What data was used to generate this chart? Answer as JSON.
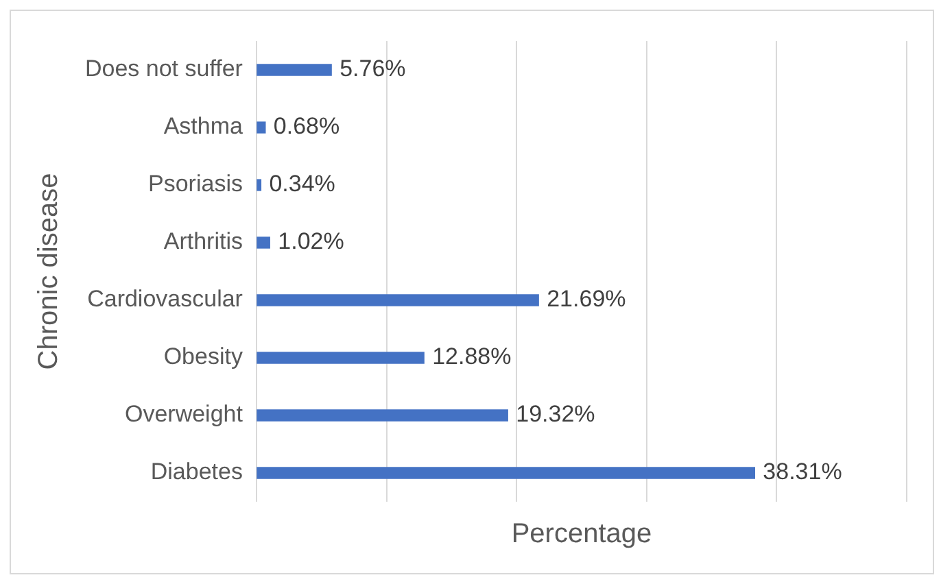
{
  "chart_data": {
    "type": "bar",
    "orientation": "horizontal",
    "xlabel": "Percentage",
    "ylabel": "Chronic disease",
    "categories": [
      "Does not suffer",
      "Asthma",
      "Psoriasis",
      "Arthritis",
      "Cardiovascular",
      "Obesity",
      "Overweight",
      "Diabetes"
    ],
    "values": [
      5.76,
      0.68,
      0.34,
      1.02,
      21.69,
      12.88,
      19.32,
      38.31
    ],
    "value_labels": [
      "5.76%",
      "0.68%",
      "0.34%",
      "1.02%",
      "21.69%",
      "12.88%",
      "19.32%",
      "38.31%"
    ],
    "color": "#4472c4",
    "xlim": [
      0,
      50
    ],
    "xticks": [
      {
        "value": 0,
        "label": null
      },
      {
        "value": 10,
        "label": null
      },
      {
        "value": 20,
        "label": null
      },
      {
        "value": 30,
        "label": null
      },
      {
        "value": 40,
        "label": null
      },
      {
        "value": 50,
        "label": null
      }
    ],
    "tick_labels": "y",
    "grid": "x",
    "legend": false
  }
}
